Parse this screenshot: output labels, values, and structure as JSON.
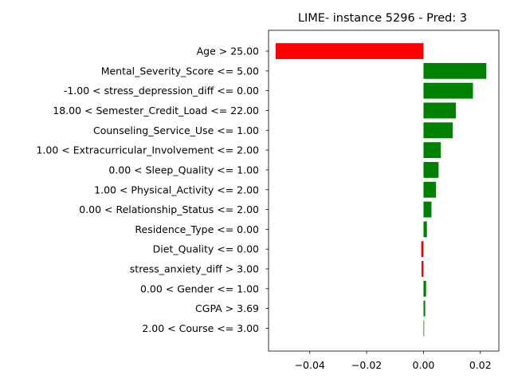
{
  "chart_data": {
    "type": "bar",
    "orientation": "horizontal",
    "title": "LIME- instance 5296 - Pred: 3",
    "xlabel": "",
    "ylabel": "",
    "xlim": [
      -0.0545,
      0.0265
    ],
    "grid": false,
    "positive_color": "#008000",
    "negative_color": "#ff0000",
    "categories": [
      "Age > 25.00",
      "Mental_Severity_Score <= 5.00",
      "-1.00 < stress_depression_diff <= 0.00",
      "18.00 < Semester_Credit_Load <= 22.00",
      "Counseling_Service_Use <= 1.00",
      "1.00 < Extracurricular_Involvement <= 2.00",
      "0.00 < Sleep_Quality <= 1.00",
      "1.00 < Physical_Activity <= 2.00",
      "0.00 < Relationship_Status <= 2.00",
      "Residence_Type <= 0.00",
      "Diet_Quality <= 0.00",
      "stress_anxiety_diff > 3.00",
      "0.00 < Gender <= 1.00",
      "CGPA > 3.69",
      "2.00 < Course <= 3.00"
    ],
    "values": [
      -0.052,
      0.0221,
      0.0174,
      0.0114,
      0.0103,
      0.0061,
      0.0053,
      0.0044,
      0.0028,
      0.0012,
      -0.0008,
      -0.0007,
      0.0009,
      0.0006,
      0.0002
    ],
    "xticks": [
      -0.04,
      -0.02,
      0.0,
      0.02
    ],
    "xtick_labels": [
      "−0.04",
      "−0.02",
      "0.00",
      "0.02"
    ]
  }
}
